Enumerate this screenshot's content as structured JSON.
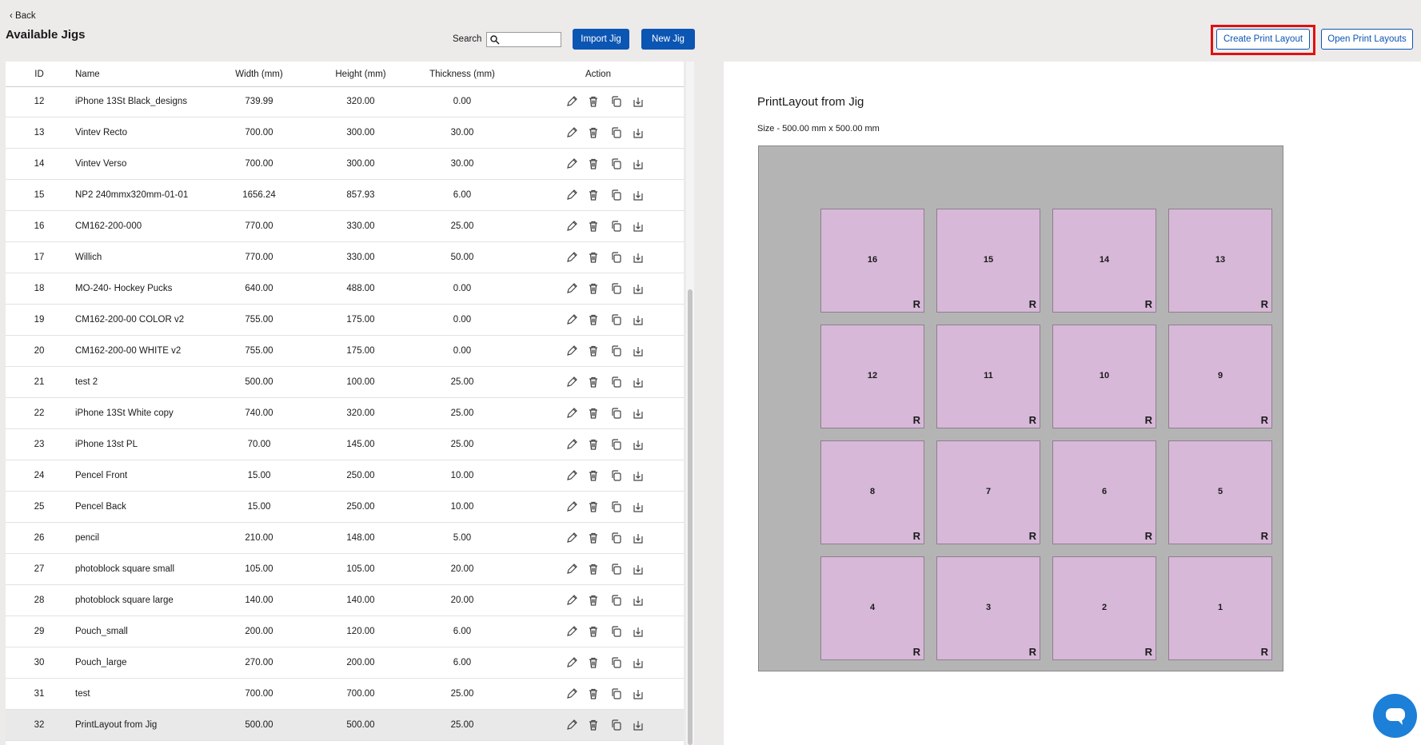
{
  "header": {
    "back": "Back",
    "title": "Available Jigs",
    "search_label": "Search",
    "buttons": [
      "Import Jig",
      "New Jig",
      "Create Print Layout",
      "Open Print Layouts"
    ]
  },
  "table": {
    "columns": [
      "ID",
      "Name",
      "Width (mm)",
      "Height (mm)",
      "Thickness (mm)",
      "Action"
    ],
    "rows": [
      [
        "12",
        "iPhone 13St Black_designs",
        "739.99",
        "320.00",
        "0.00"
      ],
      [
        "13",
        "Vintev Recto",
        "700.00",
        "300.00",
        "30.00"
      ],
      [
        "14",
        "Vintev Verso",
        "700.00",
        "300.00",
        "30.00"
      ],
      [
        "15",
        "NP2 240mmx320mm-01-01",
        "1656.24",
        "857.93",
        "6.00"
      ],
      [
        "16",
        "CM162-200-000",
        "770.00",
        "330.00",
        "25.00"
      ],
      [
        "17",
        "Willich",
        "770.00",
        "330.00",
        "50.00"
      ],
      [
        "18",
        "MO-240- Hockey Pucks",
        "640.00",
        "488.00",
        "0.00"
      ],
      [
        "19",
        "CM162-200-00 COLOR v2",
        "755.00",
        "175.00",
        "0.00"
      ],
      [
        "20",
        "CM162-200-00 WHITE v2",
        "755.00",
        "175.00",
        "0.00"
      ],
      [
        "21",
        "test 2",
        "500.00",
        "100.00",
        "25.00"
      ],
      [
        "22",
        "iPhone 13St White copy",
        "740.00",
        "320.00",
        "25.00"
      ],
      [
        "23",
        "iPhone 13st PL",
        "70.00",
        "145.00",
        "25.00"
      ],
      [
        "24",
        "Pencel Front",
        "15.00",
        "250.00",
        "10.00"
      ],
      [
        "25",
        "Pencel Back",
        "15.00",
        "250.00",
        "10.00"
      ],
      [
        "26",
        "pencil",
        "210.00",
        "148.00",
        "5.00"
      ],
      [
        "27",
        "photoblock square small",
        "105.00",
        "105.00",
        "20.00"
      ],
      [
        "28",
        "photoblock square large",
        "140.00",
        "140.00",
        "20.00"
      ],
      [
        "29",
        "Pouch_small",
        "200.00",
        "120.00",
        "6.00"
      ],
      [
        "30",
        "Pouch_large",
        "270.00",
        "200.00",
        "6.00"
      ],
      [
        "31",
        "test",
        "700.00",
        "700.00",
        "25.00"
      ],
      [
        "32",
        "PrintLayout from Jig",
        "500.00",
        "500.00",
        "25.00"
      ]
    ]
  },
  "layout": {
    "title": "PrintLayout from Jig",
    "size": "Size - 500.00 mm x 500.00 mm",
    "cells": [
      {
        "label": "16",
        "mark": "R"
      },
      {
        "label": "15",
        "mark": "R"
      },
      {
        "label": "14",
        "mark": "R"
      },
      {
        "label": "13",
        "mark": "R"
      },
      {
        "label": "12",
        "mark": "R"
      },
      {
        "label": "11",
        "mark": "R"
      },
      {
        "label": "10",
        "mark": "R"
      },
      {
        "label": "9",
        "mark": "R"
      },
      {
        "label": "8",
        "mark": "R"
      },
      {
        "label": "7",
        "mark": "R"
      },
      {
        "label": "6",
        "mark": "R"
      },
      {
        "label": "5",
        "mark": "R"
      },
      {
        "label": "4",
        "mark": "R"
      },
      {
        "label": "3",
        "mark": "R"
      },
      {
        "label": "2",
        "mark": "R"
      },
      {
        "label": "1",
        "mark": "R"
      }
    ]
  }
}
